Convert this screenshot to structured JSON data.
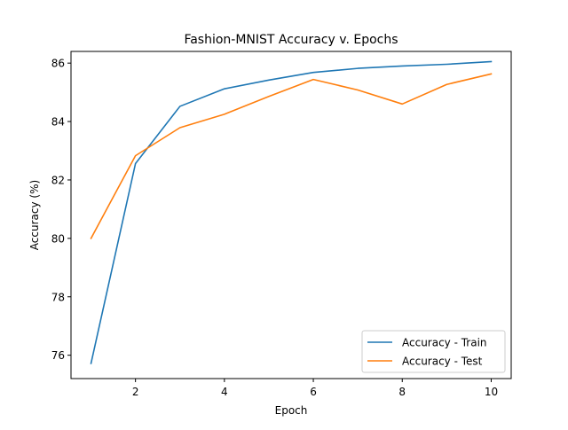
{
  "chart_data": {
    "type": "line",
    "title": "Fashion-MNIST Accuracy v. Epochs",
    "xlabel": "Epoch",
    "ylabel": "Accuracy (%)",
    "xlim": [
      0.55,
      10.45
    ],
    "ylim": [
      75.2,
      86.4
    ],
    "xticks": [
      2,
      4,
      6,
      8,
      10
    ],
    "yticks": [
      76,
      78,
      80,
      82,
      84,
      86
    ],
    "grid": false,
    "legend_position": "lower-right",
    "x": [
      1,
      2,
      3,
      4,
      5,
      6,
      7,
      8,
      9,
      10
    ],
    "series": [
      {
        "name": "Accuracy - Train",
        "color": "#1f77b4",
        "values": [
          75.72,
          82.56,
          84.52,
          85.12,
          85.42,
          85.68,
          85.82,
          85.9,
          85.96,
          86.05
        ]
      },
      {
        "name": "Accuracy - Test",
        "color": "#ff7f0e",
        "values": [
          80.0,
          82.83,
          83.79,
          84.25,
          84.86,
          85.44,
          85.08,
          84.6,
          85.27,
          85.63
        ]
      }
    ]
  }
}
